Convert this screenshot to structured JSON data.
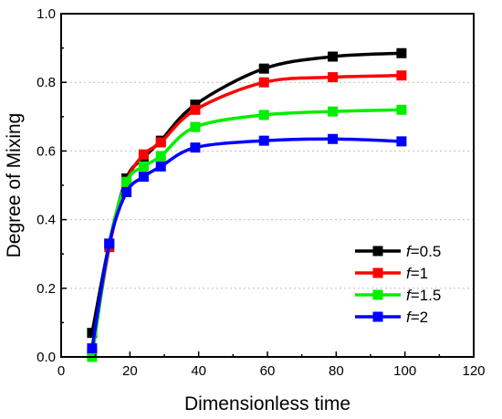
{
  "chart_data": {
    "type": "line",
    "xlabel": "Dimensionless time",
    "ylabel": "Degree of Mixing",
    "xlim": [
      0,
      120
    ],
    "ylim": [
      0,
      1.0
    ],
    "xticks": [
      0,
      20,
      40,
      60,
      80,
      100,
      120
    ],
    "xtick_labels": [
      "0",
      "20",
      "40",
      "60",
      "80",
      "100",
      "120"
    ],
    "yticks": [
      0,
      0.2,
      0.4,
      0.6,
      0.8,
      1.0
    ],
    "ytick_labels": [
      "0.0",
      "0.2",
      "0.4",
      "0.6",
      "0.8",
      "1.0"
    ],
    "grid": "horizontal dashed",
    "legend_position": "bottom-right",
    "series": [
      {
        "name_prefix": "f",
        "name_suffix": "=0.5",
        "color": "#000000",
        "x": [
          9,
          14,
          19,
          24,
          29,
          39,
          59,
          79,
          99
        ],
        "y": [
          0.07,
          0.33,
          0.52,
          0.58,
          0.63,
          0.735,
          0.84,
          0.875,
          0.885
        ]
      },
      {
        "name_prefix": "f",
        "name_suffix": "=1",
        "color": "#ff0000",
        "x": [
          9,
          14,
          19,
          24,
          29,
          39,
          59,
          79,
          99
        ],
        "y": [
          0.01,
          0.32,
          0.51,
          0.59,
          0.625,
          0.72,
          0.8,
          0.815,
          0.82
        ]
      },
      {
        "name_prefix": "f",
        "name_suffix": "=1.5",
        "color": "#00ee00",
        "x": [
          9,
          14,
          19,
          24,
          29,
          39,
          59,
          79,
          99
        ],
        "y": [
          0.0,
          0.33,
          0.51,
          0.555,
          0.585,
          0.67,
          0.705,
          0.715,
          0.72
        ]
      },
      {
        "name_prefix": "f",
        "name_suffix": "=2",
        "color": "#0000ff",
        "x": [
          9,
          14,
          19,
          24,
          29,
          39,
          59,
          79,
          99
        ],
        "y": [
          0.025,
          0.33,
          0.48,
          0.525,
          0.555,
          0.61,
          0.63,
          0.635,
          0.628
        ]
      }
    ]
  }
}
